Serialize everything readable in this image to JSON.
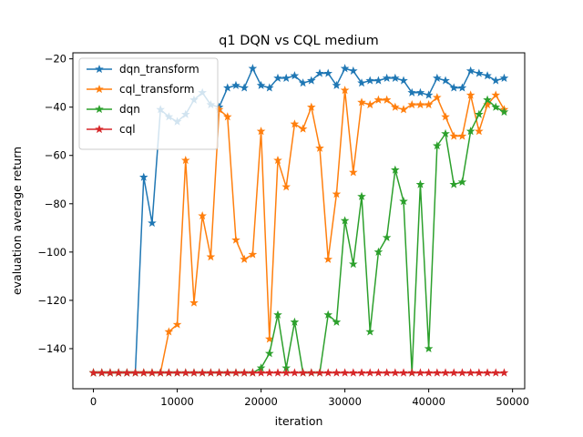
{
  "chart_data": {
    "type": "line",
    "title": "q1 DQN vs CQL medium",
    "xlabel": "iteration",
    "ylabel": "evaluation average return",
    "xlim": [
      -2450,
      51450
    ],
    "ylim": [
      -156.6,
      -17.5
    ],
    "xticks": [
      0,
      10000,
      20000,
      30000,
      40000,
      50000
    ],
    "yticks": [
      -140,
      -120,
      -100,
      -80,
      -60,
      -40,
      -20
    ],
    "grid": false,
    "legend_position": "upper left",
    "marker": "star",
    "x": [
      0,
      1000,
      2000,
      3000,
      4000,
      5000,
      6000,
      7000,
      8000,
      9000,
      10000,
      11000,
      12000,
      13000,
      14000,
      15000,
      16000,
      17000,
      18000,
      19000,
      20000,
      21000,
      22000,
      23000,
      24000,
      25000,
      26000,
      27000,
      28000,
      29000,
      30000,
      31000,
      32000,
      33000,
      34000,
      35000,
      36000,
      37000,
      38000,
      39000,
      40000,
      41000,
      42000,
      43000,
      44000,
      45000,
      46000,
      47000,
      48000,
      49000
    ],
    "series": [
      {
        "name": "dqn_transform",
        "color": "#1f77b4",
        "values": [
          -150,
          -150,
          -150,
          -150,
          -150,
          -150,
          -69,
          -88,
          -41,
          -44,
          -46,
          -43,
          -37,
          -34,
          -39,
          -40,
          -32,
          -31,
          -32,
          -24,
          -31,
          -32,
          -28,
          -28,
          -27,
          -30,
          -29,
          -26,
          -26,
          -31,
          -24,
          -25,
          -30,
          -29,
          -29,
          -28,
          -28,
          -29,
          -34,
          -34,
          -35,
          -28,
          -29,
          -32,
          -32,
          -25,
          -26,
          -27,
          -29,
          -28
        ]
      },
      {
        "name": "cql_transform",
        "color": "#ff7f0e",
        "values": [
          -150,
          -150,
          -150,
          -150,
          -150,
          -150,
          -150,
          -150,
          -150,
          -133,
          -130,
          -62,
          -121,
          -85,
          -102,
          -41,
          -44,
          -95,
          -103,
          -101,
          -50,
          -136,
          -62,
          -73,
          -47,
          -49,
          -40,
          -57,
          -103,
          -76,
          -33,
          -67,
          -38,
          -39,
          -37,
          -37,
          -40,
          -41,
          -39,
          -39,
          -39,
          -36,
          -44,
          -52,
          -52,
          -35,
          -50,
          -39,
          -35,
          -41
        ]
      },
      {
        "name": "dqn",
        "color": "#2ca02c",
        "values": [
          -150,
          -150,
          -150,
          -150,
          -150,
          -150,
          -150,
          -150,
          -150,
          -150,
          -150,
          -150,
          -150,
          -150,
          -150,
          -150,
          -150,
          -150,
          -150,
          -150,
          -148,
          -142,
          -126,
          -148,
          -129,
          -150,
          -150,
          -150,
          -126,
          -129,
          -87,
          -105,
          -77,
          -133,
          -100,
          -94,
          -66,
          -79,
          -150,
          -72,
          -140,
          -56,
          -51,
          -72,
          -71,
          -50,
          -43,
          -37,
          -40,
          -42
        ]
      },
      {
        "name": "cql",
        "color": "#d62728",
        "values": [
          -150,
          -150,
          -150,
          -150,
          -150,
          -150,
          -150,
          -150,
          -150,
          -150,
          -150,
          -150,
          -150,
          -150,
          -150,
          -150,
          -150,
          -150,
          -150,
          -150,
          -150,
          -150,
          -150,
          -150,
          -150,
          -150,
          -150,
          -150,
          -150,
          -150,
          -150,
          -150,
          -150,
          -150,
          -150,
          -150,
          -150,
          -150,
          -150,
          -150,
          -150,
          -150,
          -150,
          -150,
          -150,
          -150,
          -150,
          -150,
          -150,
          -150
        ]
      }
    ]
  }
}
